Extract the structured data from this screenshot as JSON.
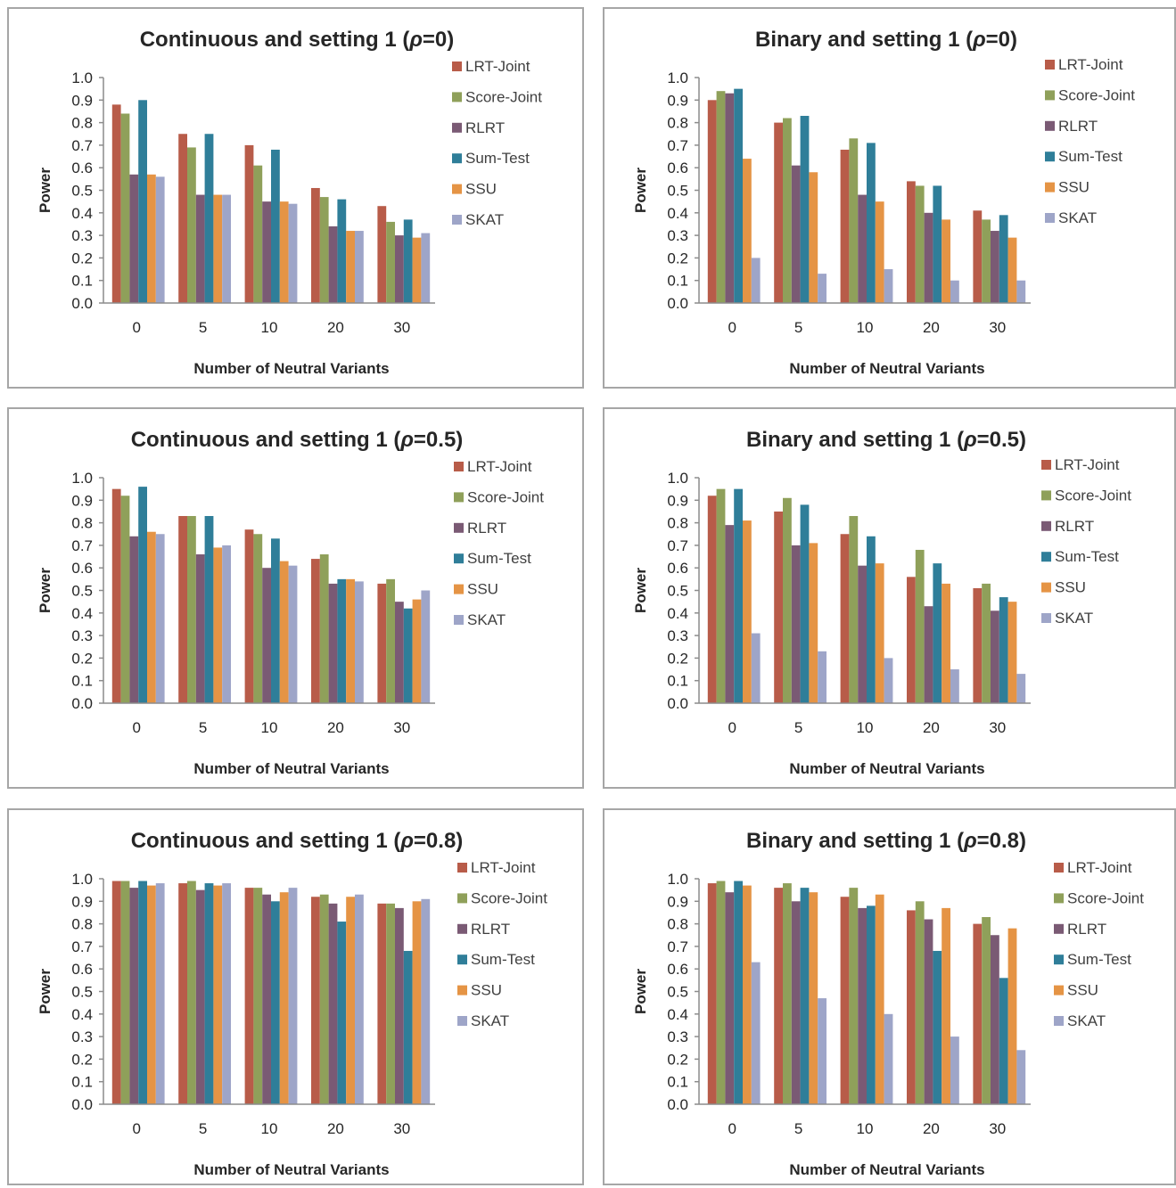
{
  "colors": {
    "LRT-Joint": "#b85c49",
    "Score-Joint": "#8fa05a",
    "RLRT": "#7a5a74",
    "Sum-Test": "#2f7e99",
    "SSU": "#e59445",
    "SKAT": "#9ea5c8"
  },
  "chart_data": [
    {
      "type": "bar",
      "title": "Continuous and setting 1 (ρ=0)",
      "title_parts": {
        "prefix": "Continuous and setting 1 (",
        "rho": "ρ",
        "suffix": "=0)"
      },
      "xlabel": "Number of Neutral Variants",
      "ylabel": "Power",
      "ylim": [
        0,
        1
      ],
      "yticks": [
        "0.0",
        "0.1",
        "0.2",
        "0.3",
        "0.4",
        "0.5",
        "0.6",
        "0.7",
        "0.8",
        "0.9",
        "1.0"
      ],
      "categories": [
        "0",
        "5",
        "10",
        "20",
        "30"
      ],
      "legend_position": "right",
      "series": [
        {
          "name": "LRT-Joint",
          "values": [
            0.88,
            0.75,
            0.7,
            0.51,
            0.43
          ]
        },
        {
          "name": "Score-Joint",
          "values": [
            0.84,
            0.69,
            0.61,
            0.47,
            0.36
          ]
        },
        {
          "name": "RLRT",
          "values": [
            0.57,
            0.48,
            0.45,
            0.34,
            0.3
          ]
        },
        {
          "name": "Sum-Test",
          "values": [
            0.9,
            0.75,
            0.68,
            0.46,
            0.37
          ]
        },
        {
          "name": "SSU",
          "values": [
            0.57,
            0.48,
            0.45,
            0.32,
            0.29
          ]
        },
        {
          "name": "SKAT",
          "values": [
            0.56,
            0.48,
            0.44,
            0.32,
            0.31
          ]
        }
      ]
    },
    {
      "type": "bar",
      "title": "Binary and setting 1 (ρ=0)",
      "title_parts": {
        "prefix": "Binary and setting 1 (",
        "rho": "ρ",
        "suffix": "=0)"
      },
      "xlabel": "Number of Neutral Variants",
      "ylabel": "Power",
      "ylim": [
        0,
        1
      ],
      "yticks": [
        "0.0",
        "0.1",
        "0.2",
        "0.3",
        "0.4",
        "0.5",
        "0.6",
        "0.7",
        "0.8",
        "0.9",
        "1.0"
      ],
      "categories": [
        "0",
        "5",
        "10",
        "20",
        "30"
      ],
      "legend_position": "right",
      "series": [
        {
          "name": "LRT-Joint",
          "values": [
            0.9,
            0.8,
            0.68,
            0.54,
            0.41
          ]
        },
        {
          "name": "Score-Joint",
          "values": [
            0.94,
            0.82,
            0.73,
            0.52,
            0.37
          ]
        },
        {
          "name": "RLRT",
          "values": [
            0.93,
            0.61,
            0.48,
            0.4,
            0.32
          ]
        },
        {
          "name": "Sum-Test",
          "values": [
            0.95,
            0.83,
            0.71,
            0.52,
            0.39
          ]
        },
        {
          "name": "SSU",
          "values": [
            0.64,
            0.58,
            0.45,
            0.37,
            0.29
          ]
        },
        {
          "name": "SKAT",
          "values": [
            0.2,
            0.13,
            0.15,
            0.1,
            0.1
          ]
        }
      ]
    },
    {
      "type": "bar",
      "title": "Continuous and setting 1 (ρ=0.5)",
      "title_parts": {
        "prefix": "Continuous and setting 1 (",
        "rho": "ρ",
        "suffix": "=0.5)"
      },
      "xlabel": "Number of Neutral Variants",
      "ylabel": "Power",
      "ylim": [
        0,
        1
      ],
      "yticks": [
        "0.0",
        "0.1",
        "0.2",
        "0.3",
        "0.4",
        "0.5",
        "0.6",
        "0.7",
        "0.8",
        "0.9",
        "1.0"
      ],
      "categories": [
        "0",
        "5",
        "10",
        "20",
        "30"
      ],
      "legend_position": "right",
      "series": [
        {
          "name": "LRT-Joint",
          "values": [
            0.95,
            0.83,
            0.77,
            0.64,
            0.53
          ]
        },
        {
          "name": "Score-Joint",
          "values": [
            0.92,
            0.83,
            0.75,
            0.66,
            0.55
          ]
        },
        {
          "name": "RLRT",
          "values": [
            0.74,
            0.66,
            0.6,
            0.53,
            0.45
          ]
        },
        {
          "name": "Sum-Test",
          "values": [
            0.96,
            0.83,
            0.73,
            0.55,
            0.42
          ]
        },
        {
          "name": "SSU",
          "values": [
            0.76,
            0.69,
            0.63,
            0.55,
            0.46
          ]
        },
        {
          "name": "SKAT",
          "values": [
            0.75,
            0.7,
            0.61,
            0.54,
            0.5
          ]
        }
      ]
    },
    {
      "type": "bar",
      "title": "Binary and setting 1 (ρ=0.5)",
      "title_parts": {
        "prefix": "Binary and setting 1 (",
        "rho": "ρ",
        "suffix": "=0.5)"
      },
      "xlabel": "Number of Neutral Variants",
      "ylabel": "Power",
      "ylim": [
        0,
        1
      ],
      "yticks": [
        "0.0",
        "0.1",
        "0.2",
        "0.3",
        "0.4",
        "0.5",
        "0.6",
        "0.7",
        "0.8",
        "0.9",
        "1.0"
      ],
      "categories": [
        "0",
        "5",
        "10",
        "20",
        "30"
      ],
      "legend_position": "right",
      "series": [
        {
          "name": "LRT-Joint",
          "values": [
            0.92,
            0.85,
            0.75,
            0.56,
            0.51
          ]
        },
        {
          "name": "Score-Joint",
          "values": [
            0.95,
            0.91,
            0.83,
            0.68,
            0.53
          ]
        },
        {
          "name": "RLRT",
          "values": [
            0.79,
            0.7,
            0.61,
            0.43,
            0.41
          ]
        },
        {
          "name": "Sum-Test",
          "values": [
            0.95,
            0.88,
            0.74,
            0.62,
            0.47
          ]
        },
        {
          "name": "SSU",
          "values": [
            0.81,
            0.71,
            0.62,
            0.53,
            0.45
          ]
        },
        {
          "name": "SKAT",
          "values": [
            0.31,
            0.23,
            0.2,
            0.15,
            0.13
          ]
        }
      ]
    },
    {
      "type": "bar",
      "title": "Continuous and setting 1 (ρ=0.8)",
      "title_parts": {
        "prefix": "Continuous and setting 1 (",
        "rho": "ρ",
        "suffix": "=0.8)"
      },
      "xlabel": "Number of Neutral Variants",
      "ylabel": "Power",
      "ylim": [
        0,
        1
      ],
      "yticks": [
        "0.0",
        "0.1",
        "0.2",
        "0.3",
        "0.4",
        "0.5",
        "0.6",
        "0.7",
        "0.8",
        "0.9",
        "1.0"
      ],
      "categories": [
        "0",
        "5",
        "10",
        "20",
        "30"
      ],
      "legend_position": "right",
      "series": [
        {
          "name": "LRT-Joint",
          "values": [
            0.99,
            0.98,
            0.96,
            0.92,
            0.89
          ]
        },
        {
          "name": "Score-Joint",
          "values": [
            0.99,
            0.99,
            0.96,
            0.93,
            0.89
          ]
        },
        {
          "name": "RLRT",
          "values": [
            0.96,
            0.95,
            0.93,
            0.89,
            0.87
          ]
        },
        {
          "name": "Sum-Test",
          "values": [
            0.99,
            0.98,
            0.9,
            0.81,
            0.68
          ]
        },
        {
          "name": "SSU",
          "values": [
            0.97,
            0.97,
            0.94,
            0.92,
            0.9
          ]
        },
        {
          "name": "SKAT",
          "values": [
            0.98,
            0.98,
            0.96,
            0.93,
            0.91
          ]
        }
      ]
    },
    {
      "type": "bar",
      "title": "Binary and setting 1 (ρ=0.8)",
      "title_parts": {
        "prefix": "Binary and setting 1 (",
        "rho": "ρ",
        "suffix": "=0.8)"
      },
      "xlabel": "Number of Neutral Variants",
      "ylabel": "Power",
      "ylim": [
        0,
        1
      ],
      "yticks": [
        "0.0",
        "0.1",
        "0.2",
        "0.3",
        "0.4",
        "0.5",
        "0.6",
        "0.7",
        "0.8",
        "0.9",
        "1.0"
      ],
      "categories": [
        "0",
        "5",
        "10",
        "20",
        "30"
      ],
      "legend_position": "right",
      "series": [
        {
          "name": "LRT-Joint",
          "values": [
            0.98,
            0.96,
            0.92,
            0.86,
            0.8
          ]
        },
        {
          "name": "Score-Joint",
          "values": [
            0.99,
            0.98,
            0.96,
            0.9,
            0.83
          ]
        },
        {
          "name": "RLRT",
          "values": [
            0.94,
            0.9,
            0.87,
            0.82,
            0.75
          ]
        },
        {
          "name": "Sum-Test",
          "values": [
            0.99,
            0.96,
            0.88,
            0.68,
            0.56
          ]
        },
        {
          "name": "SSU",
          "values": [
            0.97,
            0.94,
            0.93,
            0.87,
            0.78
          ]
        },
        {
          "name": "SKAT",
          "values": [
            0.63,
            0.47,
            0.4,
            0.3,
            0.24
          ]
        }
      ]
    }
  ]
}
